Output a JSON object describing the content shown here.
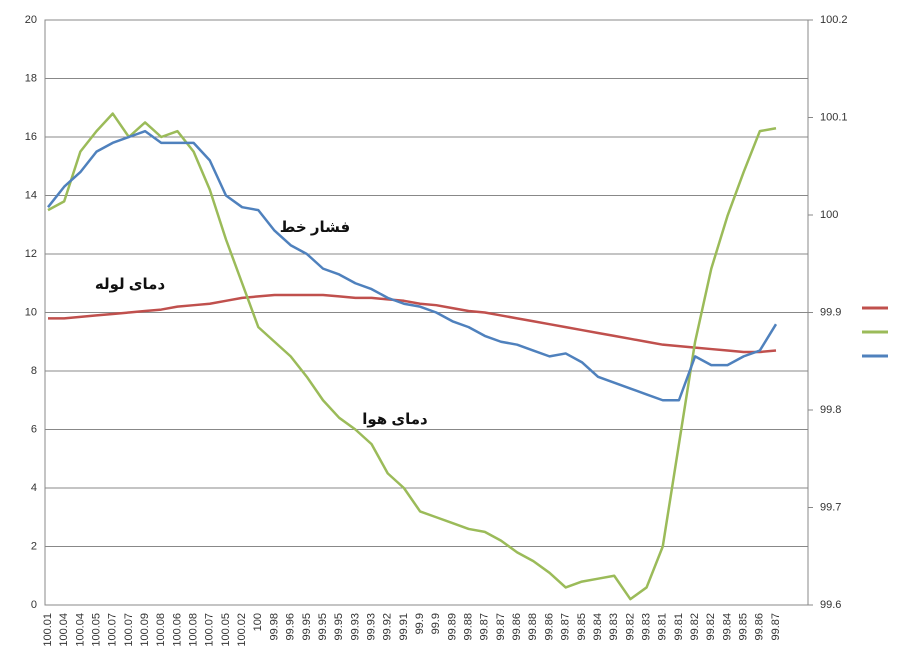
{
  "chart_data": {
    "type": "line",
    "categories": [
      "100.01",
      "100.04",
      "100.04",
      "100.05",
      "100.07",
      "100.07",
      "100.09",
      "100.08",
      "100.06",
      "100.08",
      "100.07",
      "100.05",
      "100.02",
      "100",
      "99.98",
      "99.96",
      "99.95",
      "99.95",
      "99.95",
      "99.93",
      "99.93",
      "99.92",
      "99.91",
      "99.9",
      "99.9",
      "99.89",
      "99.88",
      "99.87",
      "99.87",
      "99.86",
      "99.88",
      "99.86",
      "99.87",
      "99.85",
      "99.84",
      "99.83",
      "99.82",
      "99.83",
      "99.81",
      "99.81",
      "99.82",
      "99.82",
      "99.84",
      "99.85",
      "99.86",
      "99.87"
    ],
    "series": [
      {
        "color": "#c0504d",
        "values": [
          9.8,
          9.8,
          9.85,
          9.9,
          9.95,
          10.0,
          10.05,
          10.1,
          10.2,
          10.25,
          10.3,
          10.4,
          10.5,
          10.55,
          10.6,
          10.6,
          10.6,
          10.6,
          10.55,
          10.5,
          10.5,
          10.45,
          10.4,
          10.3,
          10.25,
          10.15,
          10.05,
          10.0,
          9.9,
          9.8,
          9.7,
          9.6,
          9.5,
          9.4,
          9.3,
          9.2,
          9.1,
          9.0,
          8.9,
          8.85,
          8.8,
          8.75,
          8.7,
          8.65,
          8.65,
          8.7
        ]
      },
      {
        "color": "#9bbb59",
        "values": [
          13.5,
          13.8,
          15.5,
          16.2,
          16.8,
          16.0,
          16.5,
          16.0,
          16.2,
          15.5,
          14.2,
          12.5,
          11.0,
          9.5,
          9.0,
          8.5,
          7.8,
          7.0,
          6.4,
          6.0,
          5.5,
          4.5,
          4.0,
          3.2,
          3.0,
          2.8,
          2.6,
          2.5,
          2.2,
          1.8,
          1.5,
          1.1,
          0.6,
          0.8,
          0.9,
          1.0,
          0.2,
          0.6,
          2.0,
          5.5,
          9.0,
          11.5,
          13.3,
          14.8,
          16.2,
          16.3
        ]
      },
      {
        "color": "#4f81bd",
        "values": [
          13.6,
          14.3,
          14.8,
          15.5,
          15.8,
          16.0,
          16.2,
          15.8,
          15.8,
          15.8,
          15.2,
          14.0,
          13.6,
          13.5,
          12.8,
          12.3,
          12.0,
          11.5,
          11.3,
          11.0,
          10.8,
          10.5,
          10.3,
          10.2,
          10.0,
          9.7,
          9.5,
          9.2,
          9.0,
          8.9,
          8.7,
          8.5,
          8.6,
          8.3,
          7.8,
          7.6,
          7.4,
          7.2,
          7.0,
          7.0,
          8.5,
          8.2,
          8.2,
          8.5,
          8.7,
          9.6
        ]
      }
    ],
    "ylim": [
      0,
      20
    ],
    "yticks": [
      0,
      2,
      4,
      6,
      8,
      10,
      12,
      14,
      16,
      18,
      20
    ],
    "y2lim": [
      99.6,
      100.2
    ],
    "y2ticks": [
      99.6,
      99.7,
      99.8,
      99.9,
      100,
      100.1,
      100.2
    ],
    "grid": true,
    "annotations": [
      "فشار خط",
      "دمای لوله",
      "دمای هوا"
    ]
  }
}
